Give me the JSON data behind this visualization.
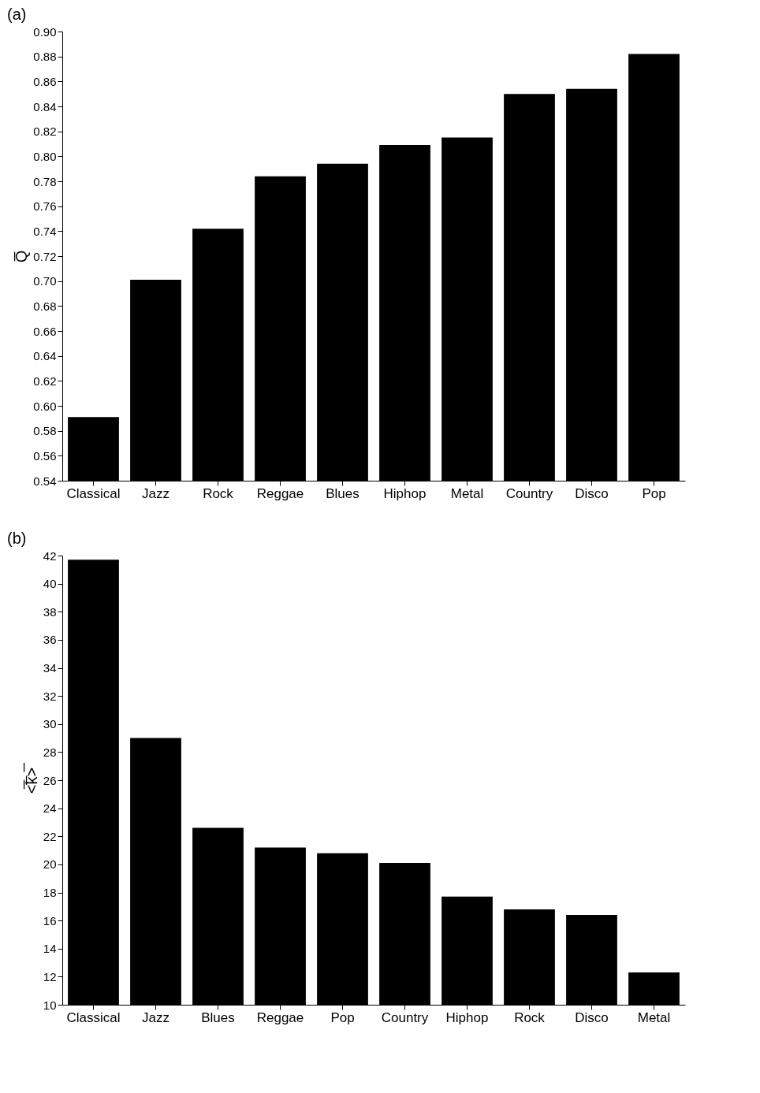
{
  "chart_data": [
    {
      "type": "bar",
      "title": "(a)",
      "ylabel": "Q̅",
      "categories": [
        "Classical",
        "Jazz",
        "Rock",
        "Reggae",
        "Blues",
        "Hiphop",
        "Metal",
        "Country",
        "Disco",
        "Pop"
      ],
      "values": [
        0.591,
        0.701,
        0.742,
        0.784,
        0.794,
        0.809,
        0.815,
        0.85,
        0.854,
        0.882
      ],
      "color": "#000000",
      "ylim": [
        0.54,
        0.9
      ],
      "yticks": [
        {
          "value": 0.54,
          "label": "0.54"
        },
        {
          "value": 0.56,
          "label": "0.56"
        },
        {
          "value": 0.58,
          "label": "0.58"
        },
        {
          "value": 0.6,
          "label": "0.60"
        },
        {
          "value": 0.62,
          "label": "0.62"
        },
        {
          "value": 0.64,
          "label": "0.64"
        },
        {
          "value": 0.66,
          "label": "0.66"
        },
        {
          "value": 0.68,
          "label": "0.68"
        },
        {
          "value": 0.7,
          "label": "0.70"
        },
        {
          "value": 0.72,
          "label": "0.72"
        },
        {
          "value": 0.74,
          "label": "0.74"
        },
        {
          "value": 0.76,
          "label": "0.76"
        },
        {
          "value": 0.78,
          "label": "0.78"
        },
        {
          "value": 0.8,
          "label": "0.80"
        },
        {
          "value": 0.82,
          "label": "0.82"
        },
        {
          "value": 0.84,
          "label": "0.84"
        },
        {
          "value": 0.86,
          "label": "0.86"
        },
        {
          "value": 0.88,
          "label": "0.88"
        },
        {
          "value": 0.9,
          "label": "0.90"
        }
      ],
      "grid": false
    },
    {
      "type": "bar",
      "title": "(b)",
      "ylabel": "<̅k̅>̅",
      "categories": [
        "Classical",
        "Jazz",
        "Blues",
        "Reggae",
        "Pop",
        "Country",
        "Hiphop",
        "Rock",
        "Disco",
        "Metal"
      ],
      "values": [
        41.7,
        29.0,
        22.6,
        21.2,
        20.8,
        20.1,
        17.7,
        16.8,
        16.4,
        12.3
      ],
      "color": "#000000",
      "ylim": [
        10,
        42
      ],
      "yticks": [
        10,
        12,
        14,
        16,
        18,
        20,
        22,
        24,
        26,
        28,
        30,
        32,
        34,
        36,
        38,
        40,
        42
      ],
      "grid": false
    }
  ]
}
